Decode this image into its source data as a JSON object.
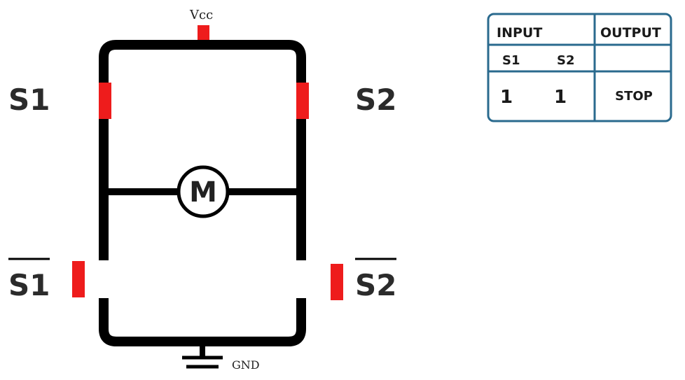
{
  "diagram": {
    "vcc_label": "Vcc",
    "gnd_label": "GND",
    "motor_label": "M",
    "switch_labels": {
      "top_left": "S1",
      "top_right": "S2",
      "bottom_left": "S1",
      "bottom_right": "S2"
    },
    "colors": {
      "wire": "#000000",
      "switch": "#ee1c1c",
      "table_border": "#2a6a8e"
    }
  },
  "truth_table": {
    "input_header": "INPUT",
    "output_header": "OUTPUT",
    "col_s1": "S1",
    "col_s2": "S2",
    "rows": [
      {
        "s1": "1",
        "s2": "1",
        "output": "STOP"
      }
    ]
  }
}
